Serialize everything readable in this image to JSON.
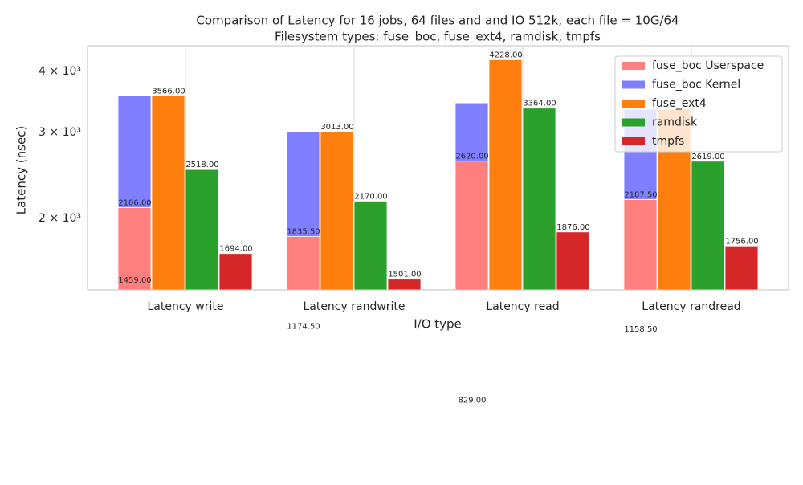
{
  "chart_data": {
    "type": "bar",
    "title": "Comparison of Latency for 16 jobs, 64 files and  and IO 512k, each file = 10G/64",
    "subtitle": "Filesystem types: fuse_boc, fuse_ext4, ramdisk, tmpfs",
    "x_label": "I/O type",
    "y_label": "Latency (nsec)",
    "categories": [
      "Latency write",
      "Latency randwrite",
      "Latency read",
      "Latency randread"
    ],
    "series": [
      {
        "name": "fuse_boc Userspace",
        "color": "#ff7f7f",
        "values": [
          2106,
          1835.5,
          2620,
          2187.5
        ],
        "value_labels": [
          "2106.00",
          "1835.50",
          "2620.00",
          "2187.50"
        ]
      },
      {
        "name": "fuse_boc Kernel",
        "color": "#7f7fff",
        "stacked": true,
        "values": [
          1459,
          1174.5,
          829,
          1158.5
        ],
        "value_labels": [
          "1459.00",
          "1174.50",
          "829.00",
          "1158.50"
        ]
      },
      {
        "name": "fuse_ext4",
        "color": "#ff7f0e",
        "values": [
          3566,
          3013,
          4228,
          3346
        ],
        "value_labels": [
          "3566.00",
          "3013.00",
          "4228.00",
          null
        ]
      },
      {
        "name": "ramdisk",
        "color": "#2ca02c",
        "values": [
          2518,
          2170,
          3364,
          2619
        ],
        "value_labels": [
          "2518.00",
          "2170.00",
          "3364.00",
          "2619.00"
        ]
      },
      {
        "name": "tmpfs",
        "color": "#d62728",
        "values": [
          1694,
          1501,
          1876,
          1756
        ],
        "value_labels": [
          "1694.00",
          "1501.00",
          "1876.00",
          "1756.00"
        ]
      }
    ],
    "log_scale": true,
    "ylim": [
      1427,
      4516
    ],
    "yticks": [
      {
        "value": 2000,
        "label": "2 × 10³"
      },
      {
        "value": 3000,
        "label": "3 × 10³"
      },
      {
        "value": 4000,
        "label": "4 × 10³"
      }
    ],
    "grid": "x",
    "legend": "upper right"
  }
}
